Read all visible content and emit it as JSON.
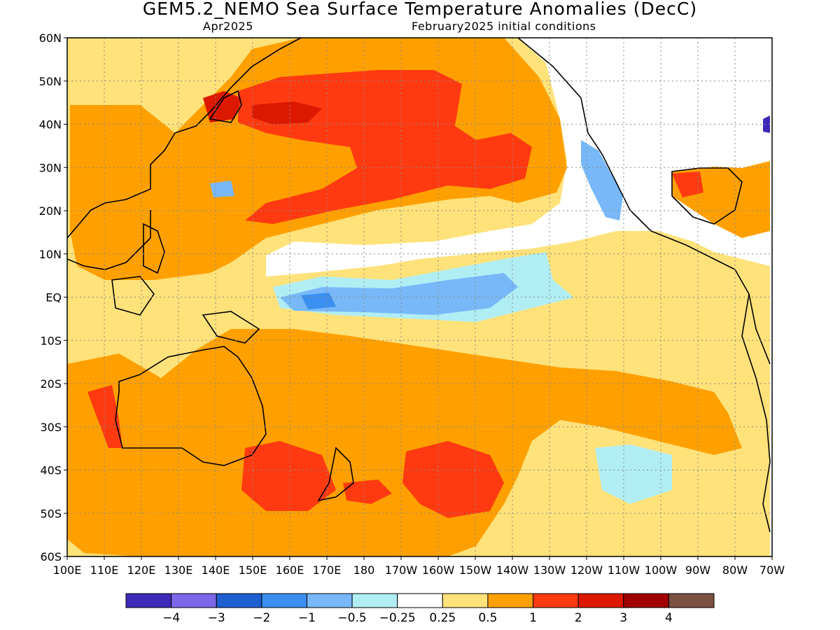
{
  "title": "GEM5.2_NEMO Sea Surface Temperature Anomalies (DecC)",
  "subtitle_left": "Apr2025",
  "subtitle_right": "February2025 initial conditions",
  "y_ticks": [
    "60N",
    "50N",
    "40N",
    "30N",
    "20N",
    "10N",
    "EQ",
    "10S",
    "20S",
    "30S",
    "40S",
    "50S",
    "60S"
  ],
  "x_ticks": [
    "100E",
    "110E",
    "120E",
    "130E",
    "140E",
    "150E",
    "160E",
    "170E",
    "180",
    "170W",
    "160W",
    "150W",
    "140W",
    "130W",
    "120W",
    "110W",
    "100W",
    "90W",
    "80W",
    "70W"
  ],
  "colorbar": {
    "colors": [
      "#3e2ab8",
      "#7b68e8",
      "#1f5fd0",
      "#3a8ff0",
      "#78b8f8",
      "#b0eef4",
      "#ffffff",
      "#ffe27a",
      "#ffa000",
      "#ff3a10",
      "#dd1800",
      "#a00000",
      "#7a5040"
    ],
    "labels": [
      "−4",
      "−3",
      "−2",
      "−1",
      "−0.5",
      "−0.25",
      "0.25",
      "0.5",
      "1",
      "2",
      "3",
      "4"
    ]
  }
}
